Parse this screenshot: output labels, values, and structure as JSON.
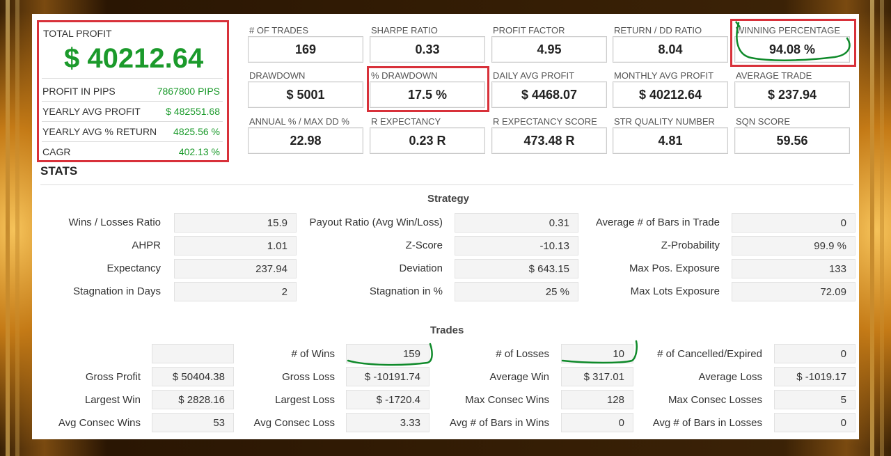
{
  "summary": {
    "total_profit_label": "TOTAL PROFIT",
    "total_profit_value": "$ 40212.64",
    "rows": [
      {
        "label": "PROFIT IN PIPS",
        "value": "7867800 PIPS"
      },
      {
        "label": "YEARLY AVG PROFIT",
        "value": "$ 482551.68"
      },
      {
        "label": "YEARLY AVG % RETURN",
        "value": "4825.56 %"
      },
      {
        "label": "CAGR",
        "value": "402.13 %"
      }
    ]
  },
  "metrics": [
    [
      {
        "label": "# OF TRADES",
        "value": "169"
      },
      {
        "label": "SHARPE RATIO",
        "value": "0.33"
      },
      {
        "label": "PROFIT FACTOR",
        "value": "4.95"
      },
      {
        "label": "RETURN / DD RATIO",
        "value": "8.04"
      },
      {
        "label": "WINNING PERCENTAGE",
        "value": "94.08 %"
      }
    ],
    [
      {
        "label": "DRAWDOWN",
        "value": "$ 5001"
      },
      {
        "label": "% DRAWDOWN",
        "value": "17.5 %"
      },
      {
        "label": "DAILY AVG PROFIT",
        "value": "$ 4468.07"
      },
      {
        "label": "MONTHLY AVG PROFIT",
        "value": "$ 40212.64"
      },
      {
        "label": "AVERAGE TRADE",
        "value": "$ 237.94"
      }
    ],
    [
      {
        "label": "ANNUAL % / MAX DD %",
        "value": "22.98"
      },
      {
        "label": "R EXPECTANCY",
        "value": "0.23 R"
      },
      {
        "label": "R EXPECTANCY SCORE",
        "value": "473.48 R"
      },
      {
        "label": "STR QUALITY NUMBER",
        "value": "4.81"
      },
      {
        "label": "SQN SCORE",
        "value": "59.56"
      }
    ]
  ],
  "stats_title": "STATS",
  "strategy": {
    "title": "Strategy",
    "rows": [
      [
        [
          "Wins / Losses Ratio",
          "15.9"
        ],
        [
          "Payout Ratio (Avg Win/Loss)",
          "0.31"
        ],
        [
          "Average # of Bars in Trade",
          "0"
        ]
      ],
      [
        [
          "AHPR",
          "1.01"
        ],
        [
          "Z-Score",
          "-10.13"
        ],
        [
          "Z-Probability",
          "99.9 %"
        ]
      ],
      [
        [
          "Expectancy",
          "237.94"
        ],
        [
          "Deviation",
          "$ 643.15"
        ],
        [
          "Max Pos. Exposure",
          "133"
        ]
      ],
      [
        [
          "Stagnation in Days",
          "2"
        ],
        [
          "Stagnation in %",
          "25 %"
        ],
        [
          "Max Lots Exposure",
          "72.09"
        ]
      ]
    ]
  },
  "trades": {
    "title": "Trades",
    "rows": [
      [
        [
          "",
          ""
        ],
        [
          "# of Wins",
          "159"
        ],
        [
          "# of Losses",
          "10"
        ],
        [
          "# of Cancelled/Expired",
          "0"
        ]
      ],
      [
        [
          "Gross Profit",
          "$ 50404.38"
        ],
        [
          "Gross Loss",
          "$ -10191.74"
        ],
        [
          "Average Win",
          "$ 317.01"
        ],
        [
          "Average Loss",
          "$ -1019.17"
        ]
      ],
      [
        [
          "Largest Win",
          "$ 2828.16"
        ],
        [
          "Largest Loss",
          "$ -1720.4"
        ],
        [
          "Max Consec Wins",
          "128"
        ],
        [
          "Max Consec Losses",
          "5"
        ]
      ],
      [
        [
          "Avg Consec Wins",
          "53"
        ],
        [
          "Avg Consec Loss",
          "3.33"
        ],
        [
          "Avg # of Bars in Wins",
          "0"
        ],
        [
          "Avg # of Bars in Losses",
          "0"
        ]
      ]
    ]
  },
  "colors": {
    "highlight": "#d8313a",
    "positive": "#1b9a2b",
    "annotation": "#0f8a2a"
  }
}
